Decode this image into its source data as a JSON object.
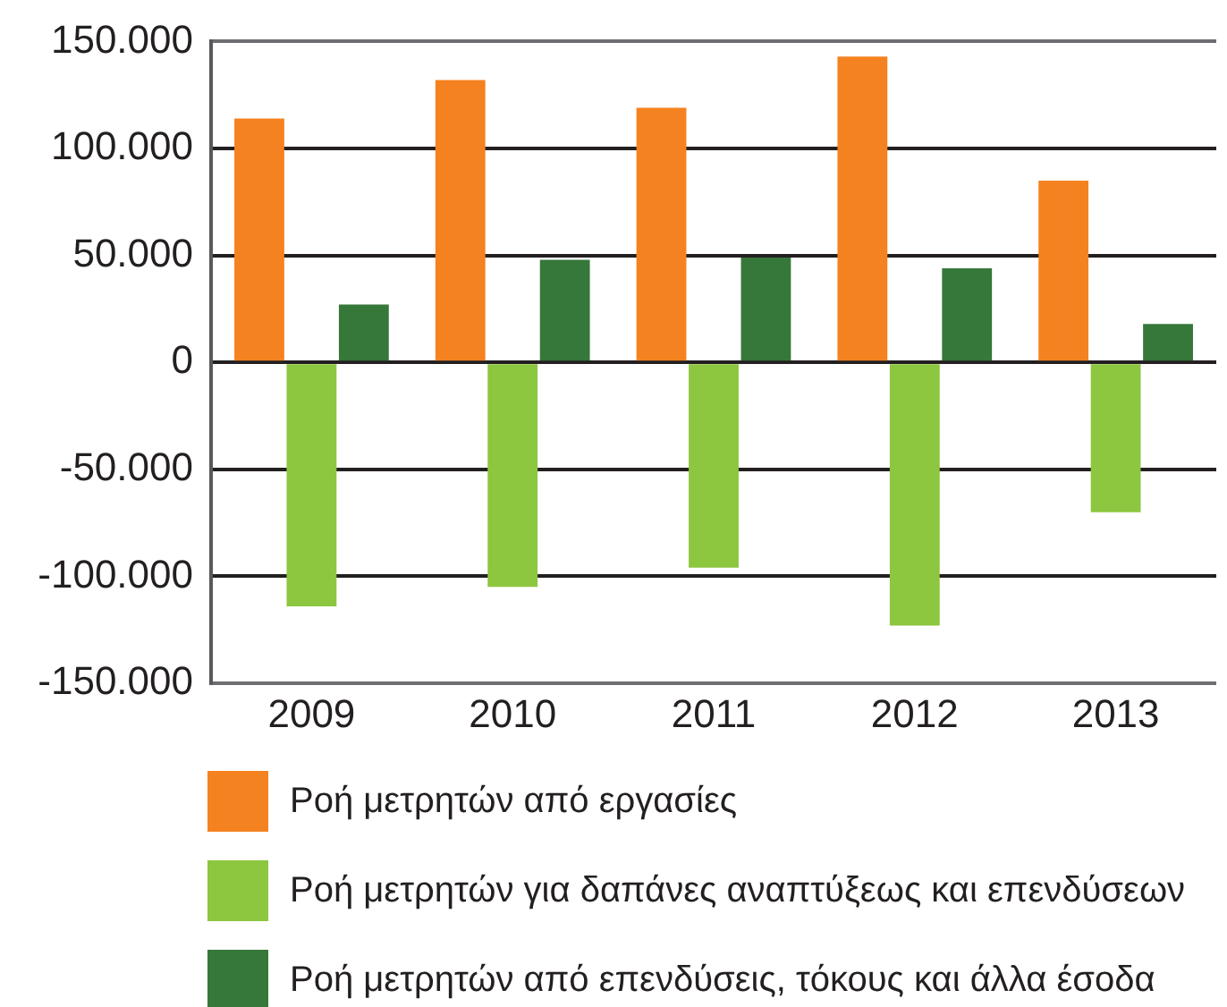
{
  "chart_data": {
    "type": "bar",
    "categories": [
      "2009",
      "2010",
      "2011",
      "2012",
      "2013"
    ],
    "series": [
      {
        "name": "Ροή μετρητών από εργασίες",
        "color": "#f58220",
        "values": [
          114000,
          132000,
          119000,
          143000,
          85000
        ]
      },
      {
        "name": "Ροή μετρητών για δαπάνες αναπτύξεως και επενδύσεων",
        "color": "#8dc63f",
        "values": [
          -114000,
          -105000,
          -96000,
          -123000,
          -70000
        ]
      },
      {
        "name": "Ροή μετρητών από επενδύσεις, τόκους και άλλα έσοδα",
        "color": "#36773a",
        "values": [
          27000,
          48000,
          49000,
          44000,
          18000
        ]
      }
    ],
    "ylim": [
      -150000,
      150000
    ],
    "yticks": [
      {
        "value": -150000,
        "label": "-150.000"
      },
      {
        "value": -100000,
        "label": "-100.000"
      },
      {
        "value": -50000,
        "label": "-50.000"
      },
      0,
      {
        "value": 50000,
        "label": "50.000"
      },
      {
        "value": 100000,
        "label": "100.000"
      },
      {
        "value": 150000,
        "label": "150.000"
      }
    ],
    "grid": "y",
    "legend": "bottom"
  }
}
